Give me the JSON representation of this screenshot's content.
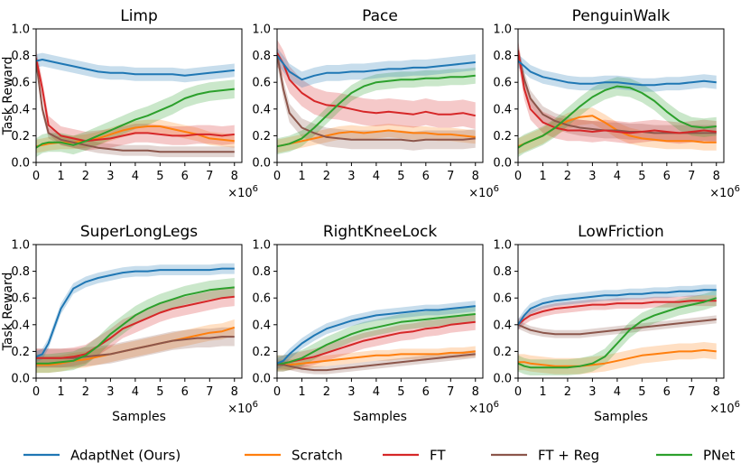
{
  "colors": {
    "AdaptNet": "#1f77b4",
    "Scratch": "#ff7f0e",
    "FT": "#d62728",
    "FT + Reg": "#8c564b",
    "PNet": "#2ca02c"
  },
  "figure": {
    "ylabel": "Task Reward",
    "xlabel": "Samples",
    "x_multiplier": "×10",
    "x_multiplier_exp": "6",
    "legend": {
      "placement": "bottom",
      "entries": [
        {
          "key": "AdaptNet",
          "label": "AdaptNet (Ours)"
        },
        {
          "key": "Scratch",
          "label": "Scratch"
        },
        {
          "key": "FT",
          "label": "FT"
        },
        {
          "key": "FT + Reg",
          "label": "FT + Reg"
        },
        {
          "key": "PNet",
          "label": "PNet"
        }
      ]
    }
  },
  "chart_data": [
    {
      "type": "line",
      "title": "Limp",
      "xlabel": "",
      "ylabel": "Task Reward",
      "xlim": [
        0,
        8.3
      ],
      "ylim": [
        0,
        1.0
      ],
      "xticks": [
        0,
        1,
        2,
        3,
        4,
        5,
        6,
        7,
        8
      ],
      "yticks": [
        "0.0",
        "0.2",
        "0.4",
        "0.6",
        "0.8",
        "1.0"
      ],
      "x": [
        0,
        0.25,
        0.5,
        1,
        1.5,
        2,
        2.5,
        3,
        3.5,
        4,
        4.5,
        5,
        5.5,
        6,
        6.5,
        7,
        7.5,
        8
      ],
      "series": [
        {
          "name": "AdaptNet",
          "values": [
            0.76,
            0.77,
            0.76,
            0.74,
            0.72,
            0.7,
            0.68,
            0.67,
            0.67,
            0.66,
            0.66,
            0.66,
            0.66,
            0.65,
            0.66,
            0.67,
            0.68,
            0.69
          ],
          "band": 0.05
        },
        {
          "name": "Scratch",
          "values": [
            0.12,
            0.13,
            0.14,
            0.15,
            0.15,
            0.16,
            0.18,
            0.21,
            0.24,
            0.26,
            0.27,
            0.27,
            0.25,
            0.23,
            0.21,
            0.18,
            0.17,
            0.16
          ],
          "band": 0.05
        },
        {
          "name": "FT",
          "values": [
            0.78,
            0.55,
            0.28,
            0.2,
            0.18,
            0.16,
            0.17,
            0.18,
            0.2,
            0.22,
            0.22,
            0.21,
            0.2,
            0.2,
            0.21,
            0.21,
            0.2,
            0.21
          ],
          "band": 0.07
        },
        {
          "name": "FT + Reg",
          "values": [
            0.76,
            0.4,
            0.22,
            0.17,
            0.15,
            0.13,
            0.11,
            0.1,
            0.09,
            0.09,
            0.09,
            0.08,
            0.08,
            0.08,
            0.08,
            0.08,
            0.08,
            0.08
          ],
          "band": 0.04
        },
        {
          "name": "PNet",
          "values": [
            0.11,
            0.14,
            0.15,
            0.15,
            0.13,
            0.16,
            0.2,
            0.24,
            0.28,
            0.32,
            0.35,
            0.39,
            0.43,
            0.48,
            0.51,
            0.53,
            0.54,
            0.55
          ],
          "band": 0.07
        }
      ]
    },
    {
      "type": "line",
      "title": "Pace",
      "xlabel": "",
      "ylabel": "",
      "xlim": [
        0,
        8.3
      ],
      "ylim": [
        0,
        1.0
      ],
      "xticks": [
        0,
        1,
        2,
        3,
        4,
        5,
        6,
        7,
        8
      ],
      "yticks": [
        "0.0",
        "0.2",
        "0.4",
        "0.6",
        "0.8",
        "1.0"
      ],
      "x": [
        0,
        0.25,
        0.5,
        1,
        1.5,
        2,
        2.5,
        3,
        3.5,
        4,
        4.5,
        5,
        5.5,
        6,
        6.5,
        7,
        7.5,
        8
      ],
      "series": [
        {
          "name": "AdaptNet",
          "values": [
            0.8,
            0.74,
            0.68,
            0.62,
            0.65,
            0.67,
            0.67,
            0.68,
            0.68,
            0.69,
            0.7,
            0.7,
            0.71,
            0.71,
            0.72,
            0.73,
            0.74,
            0.75
          ],
          "band": 0.06
        },
        {
          "name": "Scratch",
          "values": [
            0.12,
            0.13,
            0.14,
            0.16,
            0.18,
            0.2,
            0.22,
            0.23,
            0.22,
            0.23,
            0.24,
            0.23,
            0.22,
            0.22,
            0.21,
            0.21,
            0.2,
            0.19
          ],
          "band": 0.05
        },
        {
          "name": "FT",
          "values": [
            0.82,
            0.74,
            0.62,
            0.52,
            0.46,
            0.43,
            0.42,
            0.4,
            0.38,
            0.37,
            0.38,
            0.37,
            0.36,
            0.38,
            0.36,
            0.36,
            0.37,
            0.35
          ],
          "band": 0.1
        },
        {
          "name": "FT + Reg",
          "values": [
            0.81,
            0.55,
            0.37,
            0.26,
            0.22,
            0.19,
            0.18,
            0.17,
            0.17,
            0.17,
            0.17,
            0.17,
            0.16,
            0.17,
            0.17,
            0.17,
            0.17,
            0.18
          ],
          "band": 0.07
        },
        {
          "name": "PNet",
          "values": [
            0.12,
            0.13,
            0.14,
            0.18,
            0.26,
            0.35,
            0.44,
            0.52,
            0.57,
            0.6,
            0.61,
            0.62,
            0.62,
            0.63,
            0.63,
            0.64,
            0.64,
            0.65
          ],
          "band": 0.06
        }
      ]
    },
    {
      "type": "line",
      "title": "PenguinWalk",
      "xlabel": "",
      "ylabel": "",
      "xlim": [
        0,
        8.3
      ],
      "ylim": [
        0,
        1.0
      ],
      "xticks": [
        0,
        1,
        2,
        3,
        4,
        5,
        6,
        7,
        8
      ],
      "yticks": [
        "0.0",
        "0.2",
        "0.4",
        "0.6",
        "0.8",
        "1.0"
      ],
      "x": [
        0,
        0.25,
        0.5,
        1,
        1.5,
        2,
        2.5,
        3,
        3.5,
        4,
        4.5,
        5,
        5.5,
        6,
        6.5,
        7,
        7.5,
        8
      ],
      "series": [
        {
          "name": "AdaptNet",
          "values": [
            0.76,
            0.72,
            0.68,
            0.64,
            0.62,
            0.6,
            0.59,
            0.59,
            0.6,
            0.6,
            0.59,
            0.58,
            0.58,
            0.59,
            0.59,
            0.6,
            0.61,
            0.6
          ],
          "band": 0.05
        },
        {
          "name": "Scratch",
          "values": [
            0.12,
            0.14,
            0.16,
            0.2,
            0.26,
            0.31,
            0.34,
            0.35,
            0.3,
            0.24,
            0.2,
            0.18,
            0.17,
            0.16,
            0.16,
            0.16,
            0.15,
            0.15
          ],
          "band": 0.06
        },
        {
          "name": "FT",
          "values": [
            0.84,
            0.55,
            0.4,
            0.3,
            0.26,
            0.24,
            0.24,
            0.23,
            0.24,
            0.23,
            0.22,
            0.23,
            0.24,
            0.23,
            0.22,
            0.23,
            0.24,
            0.23
          ],
          "band": 0.08
        },
        {
          "name": "FT + Reg",
          "values": [
            0.82,
            0.62,
            0.48,
            0.36,
            0.31,
            0.28,
            0.26,
            0.25,
            0.24,
            0.24,
            0.23,
            0.23,
            0.22,
            0.22,
            0.22,
            0.22,
            0.22,
            0.22
          ],
          "band": 0.06
        },
        {
          "name": "PNet",
          "values": [
            0.11,
            0.14,
            0.16,
            0.2,
            0.26,
            0.34,
            0.42,
            0.49,
            0.54,
            0.57,
            0.56,
            0.52,
            0.46,
            0.38,
            0.31,
            0.27,
            0.26,
            0.27
          ],
          "band": 0.07
        }
      ]
    },
    {
      "type": "line",
      "title": "SuperLongLegs",
      "xlabel": "Samples",
      "ylabel": "Task Reward",
      "xlim": [
        0,
        8.3
      ],
      "ylim": [
        0,
        1.0
      ],
      "xticks": [
        0,
        1,
        2,
        3,
        4,
        5,
        6,
        7,
        8
      ],
      "yticks": [
        "0.0",
        "0.2",
        "0.4",
        "0.6",
        "0.8",
        "1.0"
      ],
      "x": [
        0,
        0.25,
        0.5,
        1,
        1.5,
        2,
        2.5,
        3,
        3.5,
        4,
        4.5,
        5,
        5.5,
        6,
        6.5,
        7,
        7.5,
        8
      ],
      "series": [
        {
          "name": "AdaptNet",
          "values": [
            0.16,
            0.18,
            0.26,
            0.52,
            0.67,
            0.72,
            0.75,
            0.77,
            0.79,
            0.8,
            0.8,
            0.81,
            0.81,
            0.81,
            0.81,
            0.81,
            0.82,
            0.82
          ],
          "band": 0.04
        },
        {
          "name": "Scratch",
          "values": [
            0.1,
            0.1,
            0.1,
            0.11,
            0.13,
            0.14,
            0.16,
            0.18,
            0.2,
            0.22,
            0.24,
            0.26,
            0.28,
            0.3,
            0.32,
            0.34,
            0.35,
            0.38
          ],
          "band": 0.06
        },
        {
          "name": "FT",
          "values": [
            0.15,
            0.15,
            0.15,
            0.15,
            0.16,
            0.18,
            0.24,
            0.3,
            0.37,
            0.41,
            0.45,
            0.49,
            0.52,
            0.54,
            0.56,
            0.58,
            0.6,
            0.61
          ],
          "band": 0.07
        },
        {
          "name": "FT + Reg",
          "values": [
            0.15,
            0.15,
            0.15,
            0.15,
            0.15,
            0.16,
            0.17,
            0.18,
            0.2,
            0.22,
            0.24,
            0.26,
            0.28,
            0.29,
            0.3,
            0.3,
            0.31,
            0.31
          ],
          "band": 0.07
        },
        {
          "name": "PNet",
          "values": [
            0.11,
            0.11,
            0.11,
            0.12,
            0.13,
            0.17,
            0.24,
            0.33,
            0.4,
            0.47,
            0.52,
            0.56,
            0.59,
            0.62,
            0.64,
            0.66,
            0.67,
            0.68
          ],
          "band": 0.07
        }
      ]
    },
    {
      "type": "line",
      "title": "RightKneeLock",
      "xlabel": "Samples",
      "ylabel": "",
      "xlim": [
        0,
        8.3
      ],
      "ylim": [
        0,
        1.0
      ],
      "xticks": [
        0,
        1,
        2,
        3,
        4,
        5,
        6,
        7,
        8
      ],
      "yticks": [
        "0.0",
        "0.2",
        "0.4",
        "0.6",
        "0.8",
        "1.0"
      ],
      "x": [
        0,
        0.25,
        0.5,
        1,
        1.5,
        2,
        2.5,
        3,
        3.5,
        4,
        4.5,
        5,
        5.5,
        6,
        6.5,
        7,
        7.5,
        8
      ],
      "series": [
        {
          "name": "AdaptNet",
          "values": [
            0.11,
            0.13,
            0.18,
            0.26,
            0.32,
            0.37,
            0.4,
            0.43,
            0.45,
            0.47,
            0.48,
            0.49,
            0.5,
            0.51,
            0.51,
            0.52,
            0.53,
            0.54
          ],
          "band": 0.04
        },
        {
          "name": "Scratch",
          "values": [
            0.1,
            0.1,
            0.1,
            0.11,
            0.12,
            0.13,
            0.14,
            0.15,
            0.16,
            0.17,
            0.17,
            0.18,
            0.18,
            0.18,
            0.18,
            0.19,
            0.19,
            0.2
          ],
          "band": 0.04
        },
        {
          "name": "FT",
          "values": [
            0.11,
            0.11,
            0.12,
            0.14,
            0.16,
            0.19,
            0.22,
            0.25,
            0.28,
            0.3,
            0.32,
            0.34,
            0.35,
            0.37,
            0.38,
            0.4,
            0.41,
            0.42
          ],
          "band": 0.06
        },
        {
          "name": "FT + Reg",
          "values": [
            0.1,
            0.1,
            0.09,
            0.07,
            0.06,
            0.06,
            0.07,
            0.08,
            0.09,
            0.1,
            0.11,
            0.12,
            0.13,
            0.14,
            0.15,
            0.16,
            0.17,
            0.18
          ],
          "band": 0.03
        },
        {
          "name": "PNet",
          "values": [
            0.11,
            0.11,
            0.12,
            0.15,
            0.2,
            0.25,
            0.29,
            0.33,
            0.36,
            0.38,
            0.4,
            0.42,
            0.43,
            0.44,
            0.45,
            0.46,
            0.47,
            0.48
          ],
          "band": 0.06
        }
      ]
    },
    {
      "type": "line",
      "title": "LowFriction",
      "xlabel": "Samples",
      "ylabel": "",
      "xlim": [
        0,
        8.3
      ],
      "ylim": [
        0,
        1.0
      ],
      "xticks": [
        0,
        1,
        2,
        3,
        4,
        5,
        6,
        7,
        8
      ],
      "yticks": [
        "0.0",
        "0.2",
        "0.4",
        "0.6",
        "0.8",
        "1.0"
      ],
      "x": [
        0,
        0.25,
        0.5,
        1,
        1.5,
        2,
        2.5,
        3,
        3.5,
        4,
        4.5,
        5,
        5.5,
        6,
        6.5,
        7,
        7.5,
        8
      ],
      "series": [
        {
          "name": "AdaptNet",
          "values": [
            0.4,
            0.47,
            0.52,
            0.56,
            0.58,
            0.59,
            0.6,
            0.61,
            0.62,
            0.62,
            0.63,
            0.63,
            0.64,
            0.64,
            0.65,
            0.65,
            0.66,
            0.66
          ],
          "band": 0.04
        },
        {
          "name": "Scratch",
          "values": [
            0.12,
            0.12,
            0.11,
            0.1,
            0.09,
            0.09,
            0.09,
            0.1,
            0.11,
            0.13,
            0.15,
            0.17,
            0.18,
            0.19,
            0.2,
            0.2,
            0.21,
            0.2
          ],
          "band": 0.06
        },
        {
          "name": "FT",
          "values": [
            0.4,
            0.44,
            0.47,
            0.5,
            0.52,
            0.53,
            0.54,
            0.55,
            0.55,
            0.56,
            0.56,
            0.56,
            0.57,
            0.57,
            0.57,
            0.58,
            0.58,
            0.58
          ],
          "band": 0.04
        },
        {
          "name": "FT + Reg",
          "values": [
            0.4,
            0.38,
            0.36,
            0.34,
            0.33,
            0.33,
            0.33,
            0.34,
            0.35,
            0.36,
            0.37,
            0.38,
            0.39,
            0.4,
            0.41,
            0.42,
            0.43,
            0.44
          ],
          "band": 0.03
        },
        {
          "name": "PNet",
          "values": [
            0.11,
            0.09,
            0.08,
            0.08,
            0.08,
            0.08,
            0.09,
            0.11,
            0.16,
            0.26,
            0.36,
            0.43,
            0.47,
            0.5,
            0.53,
            0.55,
            0.57,
            0.6
          ],
          "band": 0.06
        }
      ]
    }
  ]
}
